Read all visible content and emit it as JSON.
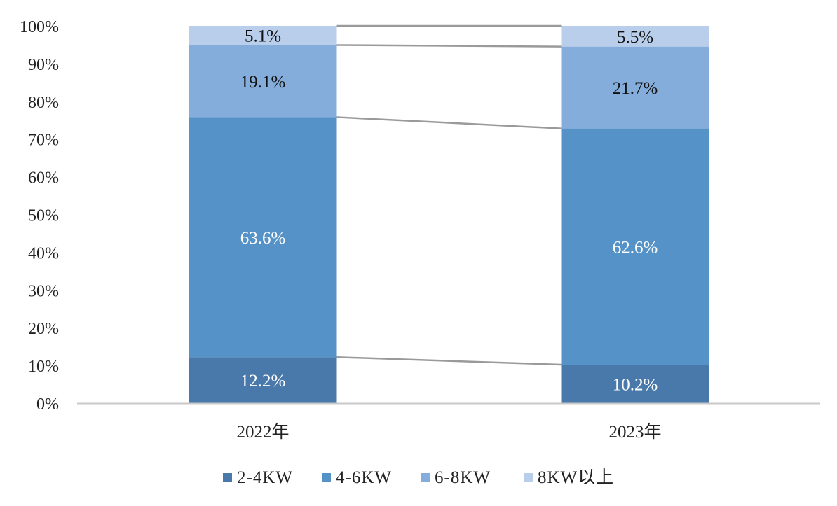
{
  "chart_data": {
    "type": "bar",
    "stacked": true,
    "percent": true,
    "categories": [
      "2022年",
      "2023年"
    ],
    "series": [
      {
        "name": "2-4KW",
        "values": [
          12.2,
          10.2
        ],
        "color": "#4879AA",
        "label_color": "#ffffff"
      },
      {
        "name": "4-6KW",
        "values": [
          63.6,
          62.6
        ],
        "color": "#5592C8",
        "label_color": "#ffffff"
      },
      {
        "name": "6-8KW",
        "values": [
          19.1,
          21.7
        ],
        "color": "#84ADDB",
        "label_color": "#111111"
      },
      {
        "name": "8KW以上",
        "values": [
          5.1,
          5.5
        ],
        "color": "#B9CEEA",
        "label_color": "#111111"
      }
    ],
    "data_labels": [
      [
        "12.2%",
        "10.2%"
      ],
      [
        "63.6%",
        "62.6%"
      ],
      [
        "19.1%",
        "21.7%"
      ],
      [
        "5.1%",
        "5.5%"
      ]
    ],
    "ylim": [
      0,
      100
    ],
    "yticks": [
      "0%",
      "10%",
      "20%",
      "30%",
      "40%",
      "50%",
      "60%",
      "70%",
      "80%",
      "90%",
      "100%"
    ],
    "series_lines": true,
    "grid": false,
    "legend_position": "bottom",
    "title": "",
    "xlabel": "",
    "ylabel": ""
  }
}
